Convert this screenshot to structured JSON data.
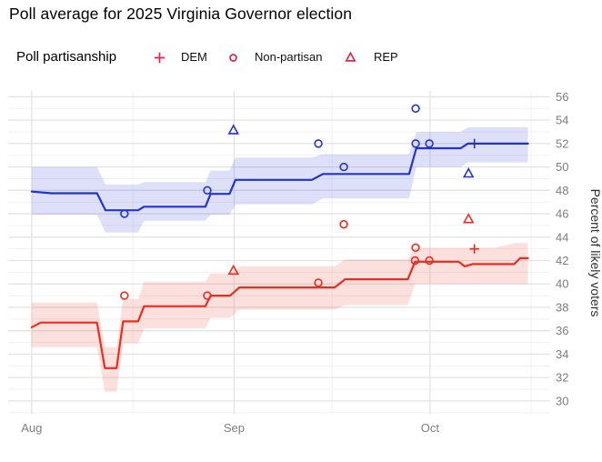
{
  "chart_data": {
    "type": "line",
    "title": "Poll average for 2025 Virginia Governor election",
    "legend": {
      "title": "Poll partisanship",
      "items": [
        {
          "label": "DEM",
          "marker": "plus"
        },
        {
          "label": "Non-partisan",
          "marker": "circle"
        },
        {
          "label": "REP",
          "marker": "triangle"
        }
      ]
    },
    "x_axis": {
      "unit": "days since Aug 1",
      "ticks": [
        {
          "label": "Aug",
          "day": 0
        },
        {
          "label": "Sep",
          "day": 31
        },
        {
          "label": "Oct",
          "day": 61
        }
      ],
      "minor_days": [
        15.5,
        46,
        76.5
      ],
      "domain": [
        -3.6,
        79.4
      ]
    },
    "y_axis": {
      "label": "Percent of likely voters",
      "ticks": [
        30,
        32,
        34,
        36,
        38,
        40,
        42,
        44,
        46,
        48,
        50,
        52,
        54,
        56
      ],
      "minor_ticks": [
        29,
        31,
        33,
        35,
        37,
        39,
        41,
        43,
        45,
        47,
        49,
        51,
        53,
        55
      ],
      "domain": [
        28.9,
        56.5
      ]
    },
    "series": [
      {
        "name": "blue",
        "line": [
          [
            0,
            47.9
          ],
          [
            3,
            47.75
          ],
          [
            10,
            47.75
          ],
          [
            11.3,
            46.3
          ],
          [
            16.3,
            46.3
          ],
          [
            17.2,
            46.6
          ],
          [
            26.6,
            46.6
          ],
          [
            27.4,
            47.7
          ],
          [
            30.3,
            47.7
          ],
          [
            31.2,
            48.9
          ],
          [
            42.9,
            48.9
          ],
          [
            44.6,
            49.4
          ],
          [
            57.8,
            49.4
          ],
          [
            58.9,
            51.6
          ],
          [
            65.7,
            51.6
          ],
          [
            66.8,
            52
          ],
          [
            76,
            52
          ]
        ],
        "band_upper": [
          [
            0,
            50
          ],
          [
            10,
            50
          ],
          [
            11.3,
            48.5
          ],
          [
            16.3,
            48.5
          ],
          [
            17.2,
            48.7
          ],
          [
            26.6,
            48.7
          ],
          [
            27.4,
            49.7
          ],
          [
            30.3,
            49.7
          ],
          [
            31.2,
            50.8
          ],
          [
            42.9,
            50.8
          ],
          [
            44.6,
            51.1
          ],
          [
            57.8,
            51.1
          ],
          [
            58.9,
            53
          ],
          [
            65.7,
            53
          ],
          [
            66.8,
            53.4
          ],
          [
            76,
            53.4
          ]
        ],
        "band_lower": [
          [
            0,
            45.9
          ],
          [
            10,
            45.9
          ],
          [
            11.3,
            44.4
          ],
          [
            16.3,
            44.4
          ],
          [
            17.2,
            45.4
          ],
          [
            26.6,
            45.4
          ],
          [
            27.4,
            45.9
          ],
          [
            30.3,
            45.9
          ],
          [
            31.2,
            46.8
          ],
          [
            42.9,
            46.8
          ],
          [
            44.6,
            47.3
          ],
          [
            57.8,
            47.3
          ],
          [
            58.9,
            50
          ],
          [
            65.7,
            50
          ],
          [
            66.8,
            50.4
          ],
          [
            76,
            50.4
          ]
        ],
        "polls": [
          {
            "day": 14.2,
            "value": 46,
            "partisanship": "Non-partisan"
          },
          {
            "day": 26.9,
            "value": 48,
            "partisanship": "Non-partisan"
          },
          {
            "day": 30.9,
            "value": 53,
            "partisanship": "REP"
          },
          {
            "day": 43.9,
            "value": 52,
            "partisanship": "Non-partisan"
          },
          {
            "day": 47.8,
            "value": 50,
            "partisanship": "Non-partisan"
          },
          {
            "day": 58.8,
            "value": 55,
            "partisanship": "Non-partisan"
          },
          {
            "day": 58.8,
            "value": 52,
            "partisanship": "Non-partisan"
          },
          {
            "day": 60.9,
            "value": 52,
            "partisanship": "Non-partisan"
          },
          {
            "day": 66.9,
            "value": 49.3,
            "partisanship": "REP"
          },
          {
            "day": 67.8,
            "value": 52,
            "partisanship": "DEM"
          }
        ]
      },
      {
        "name": "red",
        "line": [
          [
            0,
            36.3
          ],
          [
            1.4,
            36.7
          ],
          [
            10,
            36.7
          ],
          [
            11.2,
            32.8
          ],
          [
            13,
            32.8
          ],
          [
            14,
            36.8
          ],
          [
            16.3,
            36.8
          ],
          [
            17.2,
            38.1
          ],
          [
            26.6,
            38.1
          ],
          [
            27.4,
            39
          ],
          [
            30.4,
            39
          ],
          [
            31.8,
            39.7
          ],
          [
            46.4,
            39.7
          ],
          [
            48,
            40.4
          ],
          [
            57.6,
            40.4
          ],
          [
            58.7,
            41.9
          ],
          [
            65.4,
            41.9
          ],
          [
            66.3,
            41.5
          ],
          [
            67.5,
            41.7
          ],
          [
            73.9,
            41.7
          ],
          [
            74.8,
            42.2
          ],
          [
            76,
            42.2
          ]
        ],
        "band_upper": [
          [
            0,
            38.4
          ],
          [
            10,
            38.4
          ],
          [
            11.2,
            34.6
          ],
          [
            13,
            34.6
          ],
          [
            14,
            38.7
          ],
          [
            16.3,
            38.7
          ],
          [
            17.2,
            40.2
          ],
          [
            26.6,
            40.2
          ],
          [
            27.4,
            40.9
          ],
          [
            30.4,
            40.9
          ],
          [
            31.8,
            41.5
          ],
          [
            46.4,
            41.5
          ],
          [
            48,
            42.1
          ],
          [
            57.6,
            42.1
          ],
          [
            58.7,
            43.1
          ],
          [
            71,
            43.1
          ],
          [
            74,
            43.5
          ],
          [
            76,
            43.5
          ]
        ],
        "band_lower": [
          [
            0,
            34.6
          ],
          [
            10,
            34.6
          ],
          [
            11.2,
            30.8
          ],
          [
            13,
            30.8
          ],
          [
            14,
            34.9
          ],
          [
            16.3,
            34.9
          ],
          [
            17.2,
            36.2
          ],
          [
            26.6,
            36.2
          ],
          [
            27.4,
            37.1
          ],
          [
            30.4,
            37.1
          ],
          [
            31.8,
            37.8
          ],
          [
            46.4,
            37.8
          ],
          [
            48,
            38.2
          ],
          [
            57.6,
            38.2
          ],
          [
            58.7,
            40
          ],
          [
            74,
            40
          ],
          [
            76,
            40
          ]
        ],
        "polls": [
          {
            "day": 14.2,
            "value": 39,
            "partisanship": "Non-partisan"
          },
          {
            "day": 26.9,
            "value": 39,
            "partisanship": "Non-partisan"
          },
          {
            "day": 30.9,
            "value": 41,
            "partisanship": "REP"
          },
          {
            "day": 43.9,
            "value": 40.1,
            "partisanship": "Non-partisan"
          },
          {
            "day": 47.8,
            "value": 45.1,
            "partisanship": "Non-partisan"
          },
          {
            "day": 58.8,
            "value": 43.1,
            "partisanship": "Non-partisan"
          },
          {
            "day": 58.7,
            "value": 42,
            "partisanship": "Non-partisan"
          },
          {
            "day": 60.9,
            "value": 42,
            "partisanship": "Non-partisan"
          },
          {
            "day": 66.9,
            "value": 45.4,
            "partisanship": "REP"
          },
          {
            "day": 67.8,
            "value": 43,
            "partisanship": "DEM"
          }
        ]
      }
    ],
    "colors": {
      "blue_line": "#2334cd",
      "blue_band": "rgba(55,70,215,0.17)",
      "red_line": "#ea2d1f",
      "red_band": "rgba(236,60,45,0.16)",
      "legend_marker": "#e0274a",
      "grid_major": "#e3e3e3",
      "grid_minor": "#f1f1f1",
      "tick_label": "#7d7d7d",
      "axis_title": "#2e2e2e",
      "title": "#000000"
    }
  }
}
